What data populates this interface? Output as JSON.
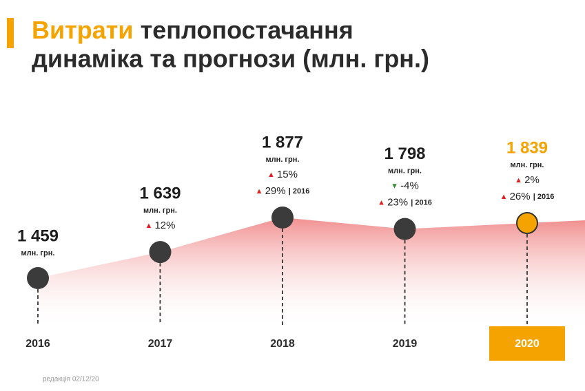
{
  "chart_data": {
    "type": "area",
    "title_accent": "Витрати",
    "title_rest": "теплопостачання",
    "title_line2": "динаміка та прогнози (млн. грн.)",
    "categories": [
      "2016",
      "2017",
      "2018",
      "2019",
      "2020"
    ],
    "values": [
      1459,
      1639,
      1877,
      1798,
      1839
    ],
    "value_labels": [
      "1 459",
      "1 639",
      "1 877",
      "1 798",
      "1 839"
    ],
    "unit": "млн. грн.",
    "change_prev": [
      null,
      "12%",
      "15%",
      "-4%",
      "2%"
    ],
    "change_prev_up": [
      null,
      true,
      true,
      false,
      true
    ],
    "change_base": [
      null,
      null,
      "29%",
      "23%",
      "26%"
    ],
    "base_label": "| 2016",
    "highlight": "2020",
    "color": "#f08a8a",
    "point_color": "#3b3b3b",
    "highlight_color": "#f5a300",
    "footnote": "редакція 02/12/20"
  }
}
